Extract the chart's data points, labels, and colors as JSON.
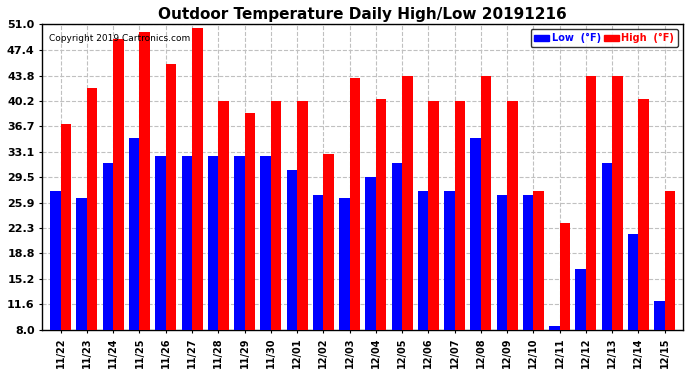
{
  "title": "Outdoor Temperature Daily High/Low 20191216",
  "copyright": "Copyright 2019 Cartronics.com",
  "dates": [
    "11/22",
    "11/23",
    "11/24",
    "11/25",
    "11/26",
    "11/27",
    "11/28",
    "11/29",
    "11/30",
    "12/01",
    "12/02",
    "12/03",
    "12/04",
    "12/05",
    "12/06",
    "12/07",
    "12/08",
    "12/09",
    "12/10",
    "12/11",
    "12/12",
    "12/13",
    "12/14",
    "12/15"
  ],
  "high": [
    37.0,
    42.0,
    49.0,
    50.0,
    45.5,
    50.5,
    40.2,
    38.5,
    40.2,
    40.2,
    32.8,
    43.5,
    40.5,
    43.8,
    40.2,
    40.2,
    43.8,
    40.2,
    27.5,
    23.0,
    43.8,
    43.8,
    40.5,
    27.5
  ],
  "low": [
    27.5,
    26.5,
    31.5,
    35.0,
    32.5,
    32.5,
    32.5,
    32.5,
    32.5,
    30.5,
    27.0,
    26.5,
    29.5,
    31.5,
    27.5,
    27.5,
    35.0,
    27.0,
    27.0,
    8.5,
    16.5,
    31.5,
    21.5,
    12.0
  ],
  "high_color": "#ff0000",
  "low_color": "#0000ff",
  "bg_color": "#ffffff",
  "grid_color": "#c0c0c0",
  "yticks": [
    8.0,
    11.6,
    15.2,
    18.8,
    22.3,
    25.9,
    29.5,
    33.1,
    36.7,
    40.2,
    43.8,
    47.4,
    51.0
  ],
  "ymin": 8.0,
  "ymax": 51.0,
  "bar_width": 0.4,
  "legend_low_label": "Low  (°F)",
  "legend_high_label": "High  (°F)"
}
